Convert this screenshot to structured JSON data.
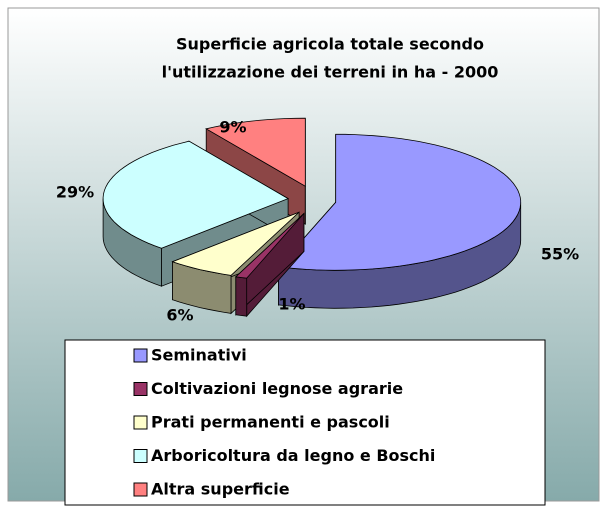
{
  "chart_data": {
    "type": "pie3d",
    "title": [
      "Superficie agricola totale secondo",
      "l'utilizzazione dei terreni in ha - 2000"
    ],
    "categories": [
      "Seminativi",
      "Coltivazioni legnose agrarie",
      "Prati permanenti e pascoli",
      "Arboricoltura da legno e Boschi",
      "Altra superficie"
    ],
    "values": [
      55,
      1,
      6,
      29,
      9
    ],
    "value_labels": [
      "55%",
      "1%",
      "6%",
      "29%",
      "9%"
    ],
    "colors": [
      "#9999ff",
      "#993366",
      "#ffffcc",
      "#ccffff",
      "#ff8080"
    ],
    "legend": "bottom"
  }
}
